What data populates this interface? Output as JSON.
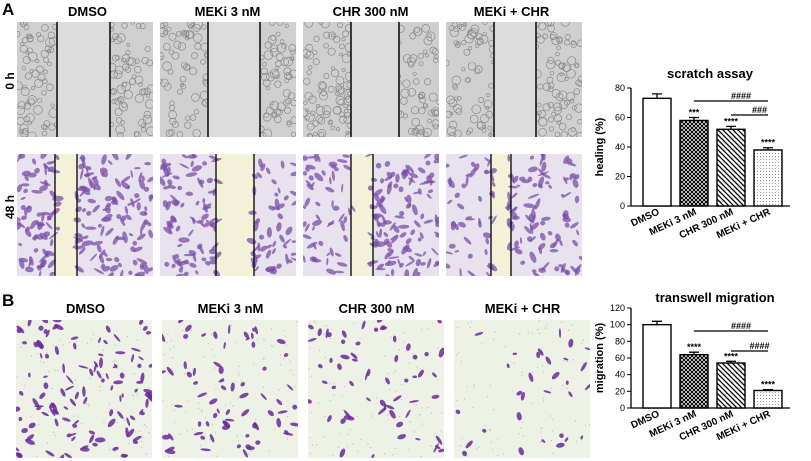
{
  "panel_a": {
    "letter": "A",
    "columns": [
      "DMSO",
      "MEKi 3 nM",
      "CHR 300 nM",
      "MEKi + CHR"
    ],
    "rows": [
      "0 h",
      "48 h"
    ]
  },
  "panel_b": {
    "letter": "B",
    "columns": [
      "DMSO",
      "MEKi 3 nM",
      "CHR 300 nM",
      "MEKi + CHR"
    ]
  },
  "colors": {
    "brightfield": "#cfcfcf",
    "crystal_violet": "#7b4fa8",
    "gap_yellow": "#f3f2d8",
    "transwell_bg": "#eef1e6"
  },
  "chart_data": [
    {
      "type": "bar",
      "title": "scratch assay",
      "ylabel": "healing (%)",
      "xlabel": "",
      "categories": [
        "DMSO",
        "MEKi 3 nM",
        "CHR 300 nM",
        "MEKi + CHR"
      ],
      "values": [
        73,
        58,
        52,
        38
      ],
      "errors": [
        3,
        2,
        2,
        1.5
      ],
      "fills": [
        "open",
        "crosshatch",
        "diagonal-hatch",
        "dotted"
      ],
      "ylim": [
        0,
        80
      ],
      "yticks": [
        "0",
        "20",
        "40",
        "60",
        "80"
      ],
      "significance_vs_control": [
        "",
        "***",
        "****",
        "****"
      ],
      "brackets": [
        {
          "from": "MEKi 3 nM",
          "to": "MEKi + CHR",
          "label": "####"
        },
        {
          "from": "CHR 300 nM",
          "to": "MEKi + CHR",
          "label": "###"
        }
      ],
      "grid": false,
      "legend": "none"
    },
    {
      "type": "bar",
      "title": "transwell migration",
      "ylabel": "migration (%)",
      "xlabel": "",
      "categories": [
        "DMSO",
        "MEKi 3 nM",
        "CHR 300 nM",
        "MEKi + CHR"
      ],
      "values": [
        100,
        64,
        54,
        21
      ],
      "errors": [
        4,
        3,
        2,
        1
      ],
      "fills": [
        "open",
        "crosshatch",
        "diagonal-hatch",
        "dotted"
      ],
      "ylim": [
        0,
        120
      ],
      "yticks": [
        "0",
        "20",
        "40",
        "60",
        "80",
        "100",
        "120"
      ],
      "significance_vs_control": [
        "",
        "****",
        "****",
        "****"
      ],
      "brackets": [
        {
          "from": "MEKi 3 nM",
          "to": "MEKi + CHR",
          "label": "####"
        },
        {
          "from": "CHR 300 nM",
          "to": "MEKi + CHR",
          "label": "####"
        }
      ],
      "grid": false,
      "legend": "none"
    }
  ]
}
